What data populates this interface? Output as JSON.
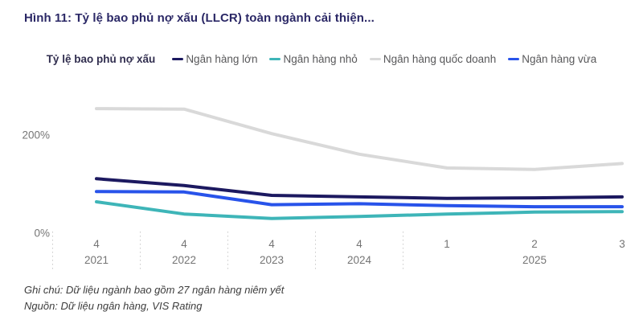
{
  "title": "Hình 11: Tỷ lệ bao phủ nợ xấu (LLCR) toàn ngành cải thiện...",
  "legend": {
    "title": "Tỷ lệ bao phủ nợ xấu",
    "items": [
      {
        "label": "Ngân hàng lớn",
        "color": "#1c1960"
      },
      {
        "label": "Ngân hàng nhỏ",
        "color": "#3eb5b8"
      },
      {
        "label": "Ngân hàng quốc doanh",
        "color": "#d9d9d9"
      },
      {
        "label": "Ngân hàng vừa",
        "color": "#2853ea"
      }
    ]
  },
  "chart_data": {
    "type": "line",
    "unit": "%",
    "categories": [
      "Q4 2021",
      "Q4 2022",
      "Q4 2023",
      "Q4 2024",
      "Q1 2025",
      "Q2 2025",
      "Q3 2025"
    ],
    "x": [
      {
        "quarter": "4",
        "year": "2021"
      },
      {
        "quarter": "4",
        "year": "2022"
      },
      {
        "quarter": "4",
        "year": "2023"
      },
      {
        "quarter": "4",
        "year": "2024"
      },
      {
        "quarter": "1",
        "year": "2025"
      },
      {
        "quarter": "2",
        "year": "2025"
      },
      {
        "quarter": "3",
        "year": "2025"
      }
    ],
    "series": [
      {
        "name": "Ngân hàng lớn",
        "color": "#1c1960",
        "values": [
          111,
          97,
          77,
          74,
          71,
          72,
          74
        ]
      },
      {
        "name": "Ngân hàng nhỏ",
        "color": "#3eb5b8",
        "values": [
          64,
          39,
          30,
          34,
          39,
          43,
          44
        ]
      },
      {
        "name": "Ngân hàng quốc doanh",
        "color": "#d9d9d9",
        "values": [
          254,
          253,
          203,
          161,
          133,
          130,
          142
        ]
      },
      {
        "name": "Ngân hàng vừa",
        "color": "#2853ea",
        "values": [
          85,
          84,
          58,
          60,
          56,
          54,
          54
        ]
      }
    ],
    "yticks": [
      {
        "value": 0,
        "label": "0%"
      },
      {
        "value": 200,
        "label": "200%"
      }
    ],
    "ylim": [
      0,
      290
    ],
    "grid": false,
    "legend_position": "top",
    "axis_label_color": "#757575",
    "separator_color": "#c9c9c9"
  },
  "notes": [
    "Ghi chú: Dữ liệu ngành bao gồm 27 ngân hàng niêm yết",
    "Nguồn: Dữ liệu ngân hàng, VIS Rating"
  ]
}
